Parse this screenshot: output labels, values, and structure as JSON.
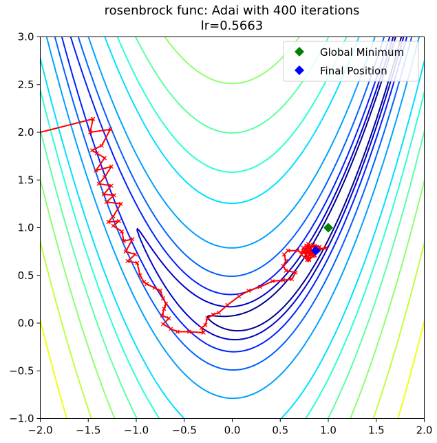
{
  "chart_data": {
    "type": "line",
    "title": "rosenbrock func: Adai with 400 iterations",
    "subtitle": "lr=0.5663",
    "xlabel": "",
    "ylabel": "",
    "xlim": [
      -2.0,
      2.0
    ],
    "ylim": [
      -1.0,
      3.0
    ],
    "x_ticks": [
      "−2.0",
      "−1.5",
      "−1.0",
      "−0.5",
      "0.0",
      "0.5",
      "1.0",
      "1.5",
      "2.0"
    ],
    "x_tick_values": [
      -2.0,
      -1.5,
      -1.0,
      -0.5,
      0.0,
      0.5,
      1.0,
      1.5,
      2.0
    ],
    "y_ticks": [
      "−1.0",
      "−0.5",
      "0.0",
      "0.5",
      "1.0",
      "1.5",
      "2.0",
      "2.5",
      "3.0"
    ],
    "y_tick_values": [
      -1.0,
      -0.5,
      0.0,
      0.5,
      1.0,
      1.5,
      2.0,
      2.5,
      3.0
    ],
    "grid": false,
    "legend_position": "top-right",
    "contour_levels_logf": [
      0.2,
      0.6,
      1.0,
      1.4,
      1.8,
      2.2,
      2.4,
      2.6,
      2.8,
      3.0,
      3.2,
      3.4,
      3.5,
      3.6
    ],
    "contour_colors": [
      "#00008f",
      "#0000cd",
      "#0020ff",
      "#0060ff",
      "#00a0ff",
      "#00e0ff",
      "#2affd4",
      "#5cffa2",
      "#8dff70",
      "#beff3f",
      "#f0ff0f",
      "#ffc300",
      "#ff7b00",
      "#d00000"
    ],
    "series": [
      {
        "name": "",
        "color": "#ff0000",
        "marker": "x",
        "x": [
          -2.0,
          -1.45,
          -1.48,
          -1.27,
          -1.36,
          -1.46,
          -1.41,
          -1.33,
          -1.42,
          -1.26,
          -1.33,
          -1.39,
          -1.26,
          -1.34,
          -1.23,
          -1.31,
          -1.16,
          -1.24,
          -1.29,
          -1.18,
          -1.24,
          -1.15,
          -1.13,
          -1.04,
          -1.11,
          -1.01,
          -1.09,
          -0.99,
          -0.96,
          -0.92,
          -0.89,
          -0.81,
          -0.75,
          -0.72,
          -0.69,
          -0.71,
          -0.73,
          -0.66,
          -0.72,
          -0.64,
          -0.57,
          -0.45,
          -0.3,
          -0.32,
          -0.28,
          -0.26,
          -0.2,
          -0.14,
          -0.05,
          0.07,
          0.17,
          0.29,
          0.42,
          0.53,
          0.62,
          0.66,
          0.56,
          0.53,
          0.56,
          0.54,
          0.58,
          0.68,
          0.77,
          0.82,
          0.85,
          0.76,
          0.78,
          0.72,
          0.74,
          0.78,
          0.77,
          0.82,
          0.78,
          0.88,
          0.79,
          0.84,
          0.9,
          0.8,
          0.86,
          0.83,
          0.98,
          0.74,
          0.8,
          0.86,
          0.91,
          0.84,
          0.79,
          0.89
        ],
        "y": [
          2.0,
          2.14,
          2.0,
          2.03,
          1.86,
          1.81,
          1.78,
          1.73,
          1.6,
          1.64,
          1.53,
          1.46,
          1.44,
          1.35,
          1.34,
          1.27,
          1.25,
          1.12,
          1.06,
          1.07,
          1.02,
          0.96,
          0.86,
          0.88,
          0.75,
          0.72,
          0.65,
          0.63,
          0.5,
          0.43,
          0.41,
          0.37,
          0.34,
          0.26,
          0.2,
          0.15,
          0.08,
          0.05,
          -0.01,
          -0.06,
          -0.09,
          -0.09,
          -0.1,
          -0.05,
          -0.02,
          0.05,
          0.09,
          0.11,
          0.19,
          0.28,
          0.34,
          0.38,
          0.44,
          0.45,
          0.46,
          0.53,
          0.55,
          0.6,
          0.65,
          0.72,
          0.76,
          0.76,
          0.72,
          0.75,
          0.71,
          0.76,
          0.66,
          0.72,
          0.79,
          0.75,
          0.81,
          0.73,
          0.81,
          0.79,
          0.83,
          0.7,
          0.77,
          0.66,
          0.81,
          0.74,
          0.79,
          0.75,
          0.67,
          0.71,
          0.8,
          0.82,
          0.7,
          0.76
        ]
      }
    ],
    "points": [
      {
        "name": "Global Minimum",
        "x": 1.0,
        "y": 1.0,
        "color": "#008000",
        "marker": "diamond"
      },
      {
        "name": "Final Position",
        "x": 0.87,
        "y": 0.76,
        "color": "#0000ff",
        "marker": "diamond"
      }
    ]
  },
  "legend": {
    "global_minimum": "Global Minimum",
    "final_position": "Final Position"
  }
}
